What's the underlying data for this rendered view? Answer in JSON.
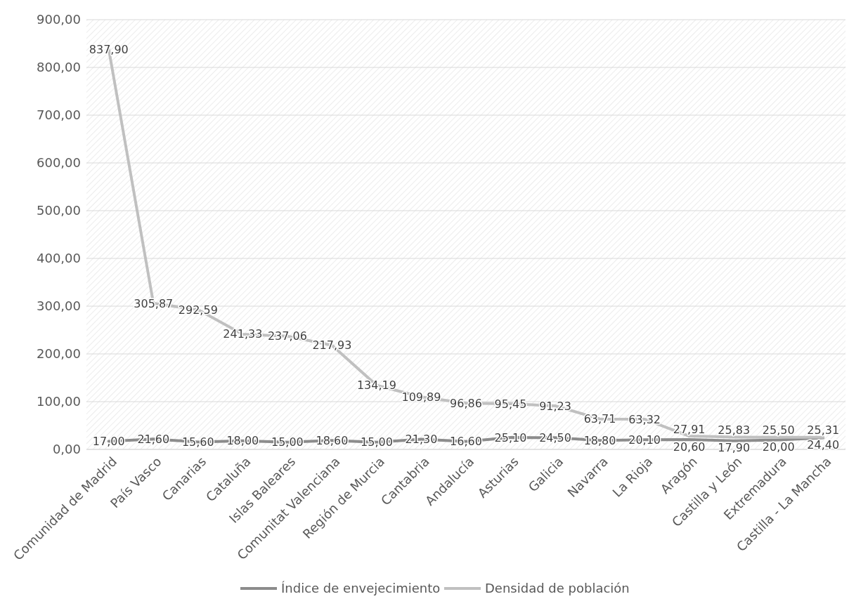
{
  "chart_data": {
    "type": "line",
    "categories": [
      "Comunidad de Madrid",
      "País Vasco",
      "Canarias",
      "Cataluña",
      "Islas Baleares",
      "Comunitat Valenciana",
      "Región de Murcia",
      "Cantabria",
      "Andalucía",
      "Asturias",
      "Galicia",
      "Navarra",
      "La Rioja",
      "Aragón",
      "Castilla y León",
      "Extremadura",
      "Castilla - La Mancha"
    ],
    "series": [
      {
        "name": "Índice de envejecimiento",
        "color": "#8c8c8c",
        "values": [
          17.0,
          21.6,
          15.6,
          18.0,
          15.0,
          18.6,
          15.0,
          21.3,
          16.6,
          25.1,
          24.5,
          18.8,
          20.1,
          20.6,
          17.9,
          20.0,
          24.4
        ],
        "value_labels": [
          "17,00",
          "21,60",
          "15,60",
          "18,00",
          "15,00",
          "18,60",
          "15,00",
          "21,30",
          "16,60",
          "25,10",
          "24,50",
          "18,80",
          "20,10",
          "20,60",
          "17,90",
          "20,00",
          "24,40"
        ]
      },
      {
        "name": "Densidad de población",
        "color": "#c0c0c0",
        "values": [
          837.9,
          305.87,
          292.59,
          241.33,
          237.06,
          217.93,
          134.19,
          109.89,
          96.86,
          95.45,
          91.23,
          63.71,
          63.32,
          27.91,
          25.83,
          25.5,
          25.31
        ],
        "value_labels": [
          "837,90",
          "305,87",
          "292,59",
          "241,33",
          "237,06",
          "217,93",
          "134,19",
          "109,89",
          "96,86",
          "95,45",
          "91,23",
          "63,71",
          "63,32",
          "27,91",
          "25,83",
          "25,50",
          "25,31"
        ]
      }
    ],
    "ylim": [
      0,
      900
    ],
    "yticks": [
      {
        "value": 0,
        "label": "0,00"
      },
      {
        "value": 100,
        "label": "100,00"
      },
      {
        "value": 200,
        "label": "200,00"
      },
      {
        "value": 300,
        "label": "300,00"
      },
      {
        "value": 400,
        "label": "400,00"
      },
      {
        "value": 500,
        "label": "500,00"
      },
      {
        "value": 600,
        "label": "600,00"
      },
      {
        "value": 700,
        "label": "700,00"
      },
      {
        "value": 800,
        "label": "800,00"
      },
      {
        "value": 900,
        "label": "900,00"
      }
    ],
    "grid": "y",
    "legend": "bottom",
    "marker": "none",
    "line_style": "solid"
  }
}
